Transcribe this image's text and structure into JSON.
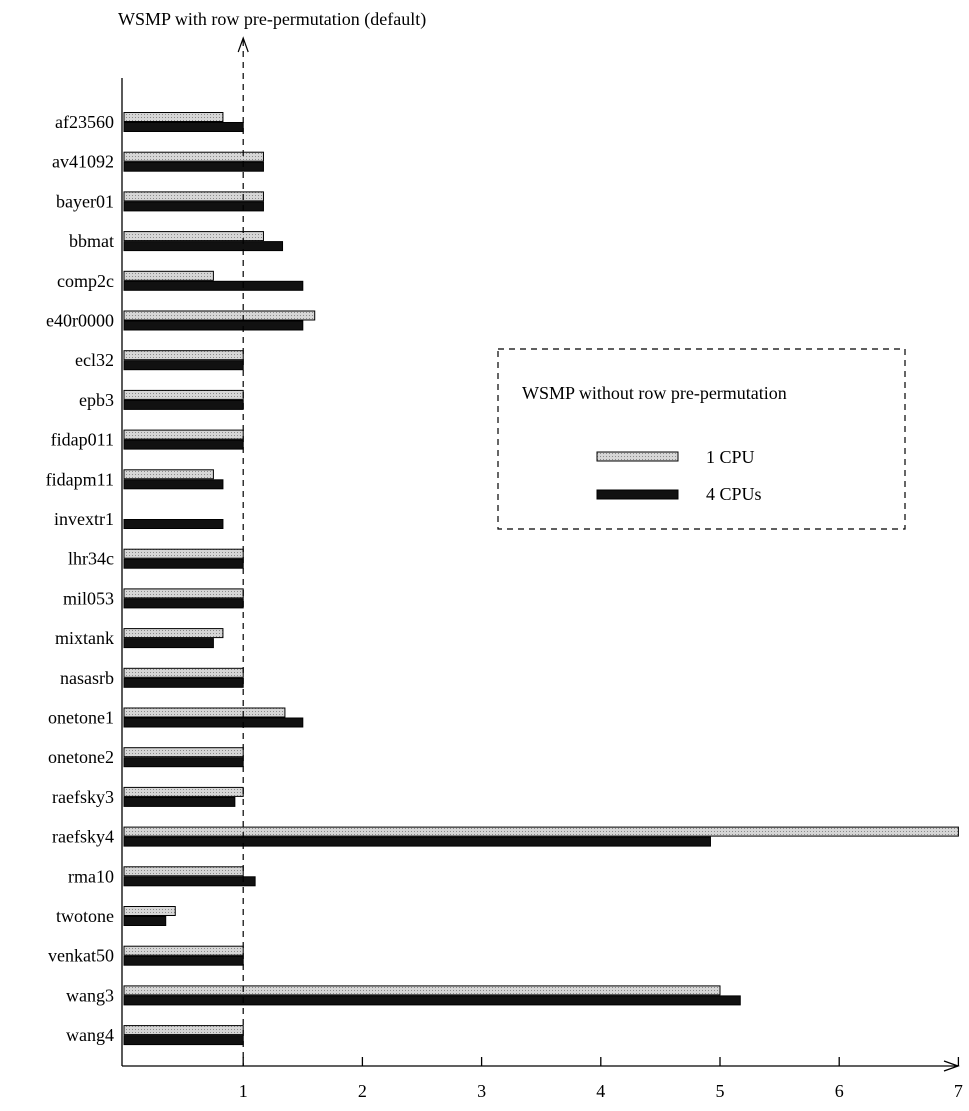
{
  "chart_data": {
    "type": "bar",
    "orientation": "horizontal",
    "title": "WSMP with row pre-permutation (default)",
    "categories": [
      "af23560",
      "av41092",
      "bayer01",
      "bbmat",
      "comp2c",
      "e40r0000",
      "ecl32",
      "epb3",
      "fidap011",
      "fidapm11",
      "invextr1",
      "lhr34c",
      "mil053",
      "mixtank",
      "nasasrb",
      "onetone1",
      "onetone2",
      "raefsky3",
      "raefsky4",
      "rma10",
      "twotone",
      "venkat50",
      "wang3",
      "wang4"
    ],
    "series": [
      {
        "name": "1 CPU",
        "color": "#c8c8c8",
        "values": [
          0.83,
          1.17,
          1.17,
          1.17,
          0.75,
          1.6,
          1.0,
          1.0,
          1.0,
          0.75,
          0.0,
          1.0,
          1.0,
          0.83,
          1.0,
          1.35,
          1.0,
          1.0,
          7.0,
          1.0,
          0.43,
          1.0,
          5.0,
          1.0
        ]
      },
      {
        "name": "4 CPUs",
        "color": "#111111",
        "values": [
          1.0,
          1.17,
          1.17,
          1.33,
          1.5,
          1.5,
          1.0,
          1.0,
          1.0,
          0.83,
          0.83,
          1.0,
          1.0,
          0.75,
          1.0,
          1.5,
          1.0,
          0.93,
          4.92,
          1.1,
          0.35,
          1.0,
          5.17,
          1.0
        ]
      }
    ],
    "xlim": [
      0,
      7
    ],
    "xticks": [
      1,
      2,
      3,
      4,
      5,
      6,
      7
    ],
    "reference_line": 1,
    "legend": {
      "title": "WSMP without row pre-permutation",
      "entries": [
        "1 CPU",
        "4 CPUs"
      ],
      "placement": "right"
    }
  }
}
